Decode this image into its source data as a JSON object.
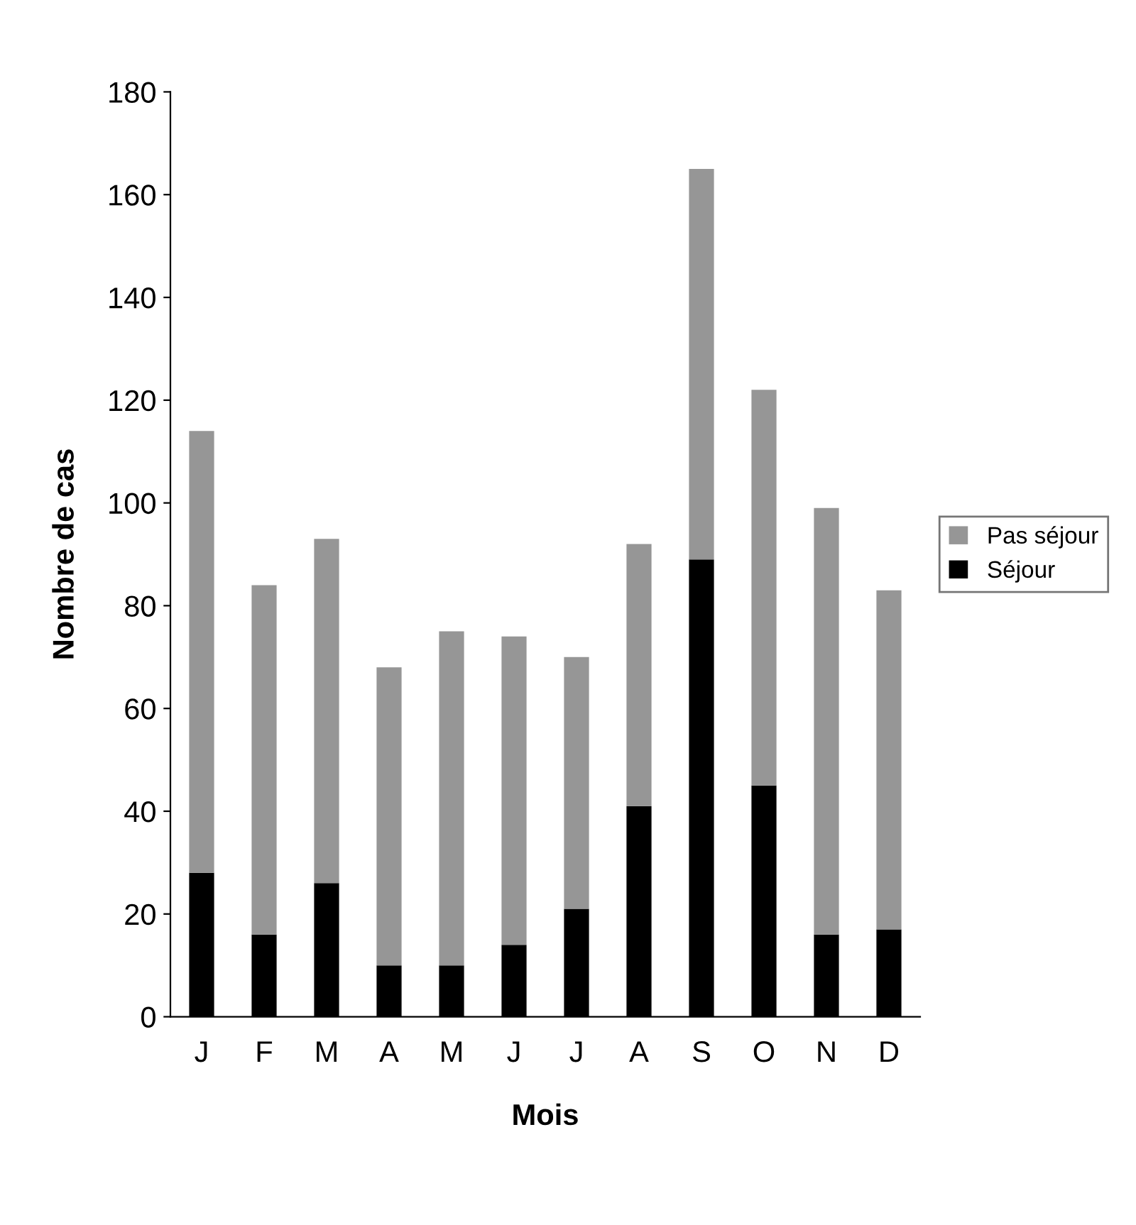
{
  "chart_data": {
    "type": "bar",
    "stacked": true,
    "xlabel": "Mois",
    "ylabel": "Nombre de cas",
    "categories": [
      "J",
      "F",
      "M",
      "A",
      "M",
      "J",
      "J",
      "A",
      "S",
      "O",
      "N",
      "D"
    ],
    "series": [
      {
        "name": "Séjour",
        "color": "#000000",
        "values": [
          28,
          16,
          26,
          10,
          10,
          14,
          21,
          41,
          89,
          45,
          16,
          17
        ]
      },
      {
        "name": "Pas séjour",
        "color": "#969696",
        "values": [
          86,
          68,
          67,
          58,
          65,
          60,
          49,
          51,
          76,
          77,
          83,
          66
        ]
      }
    ],
    "ylim": [
      0,
      180
    ],
    "yticks": [
      0,
      20,
      40,
      60,
      80,
      100,
      120,
      140,
      160,
      180
    ],
    "grid": false,
    "legend": "right"
  }
}
